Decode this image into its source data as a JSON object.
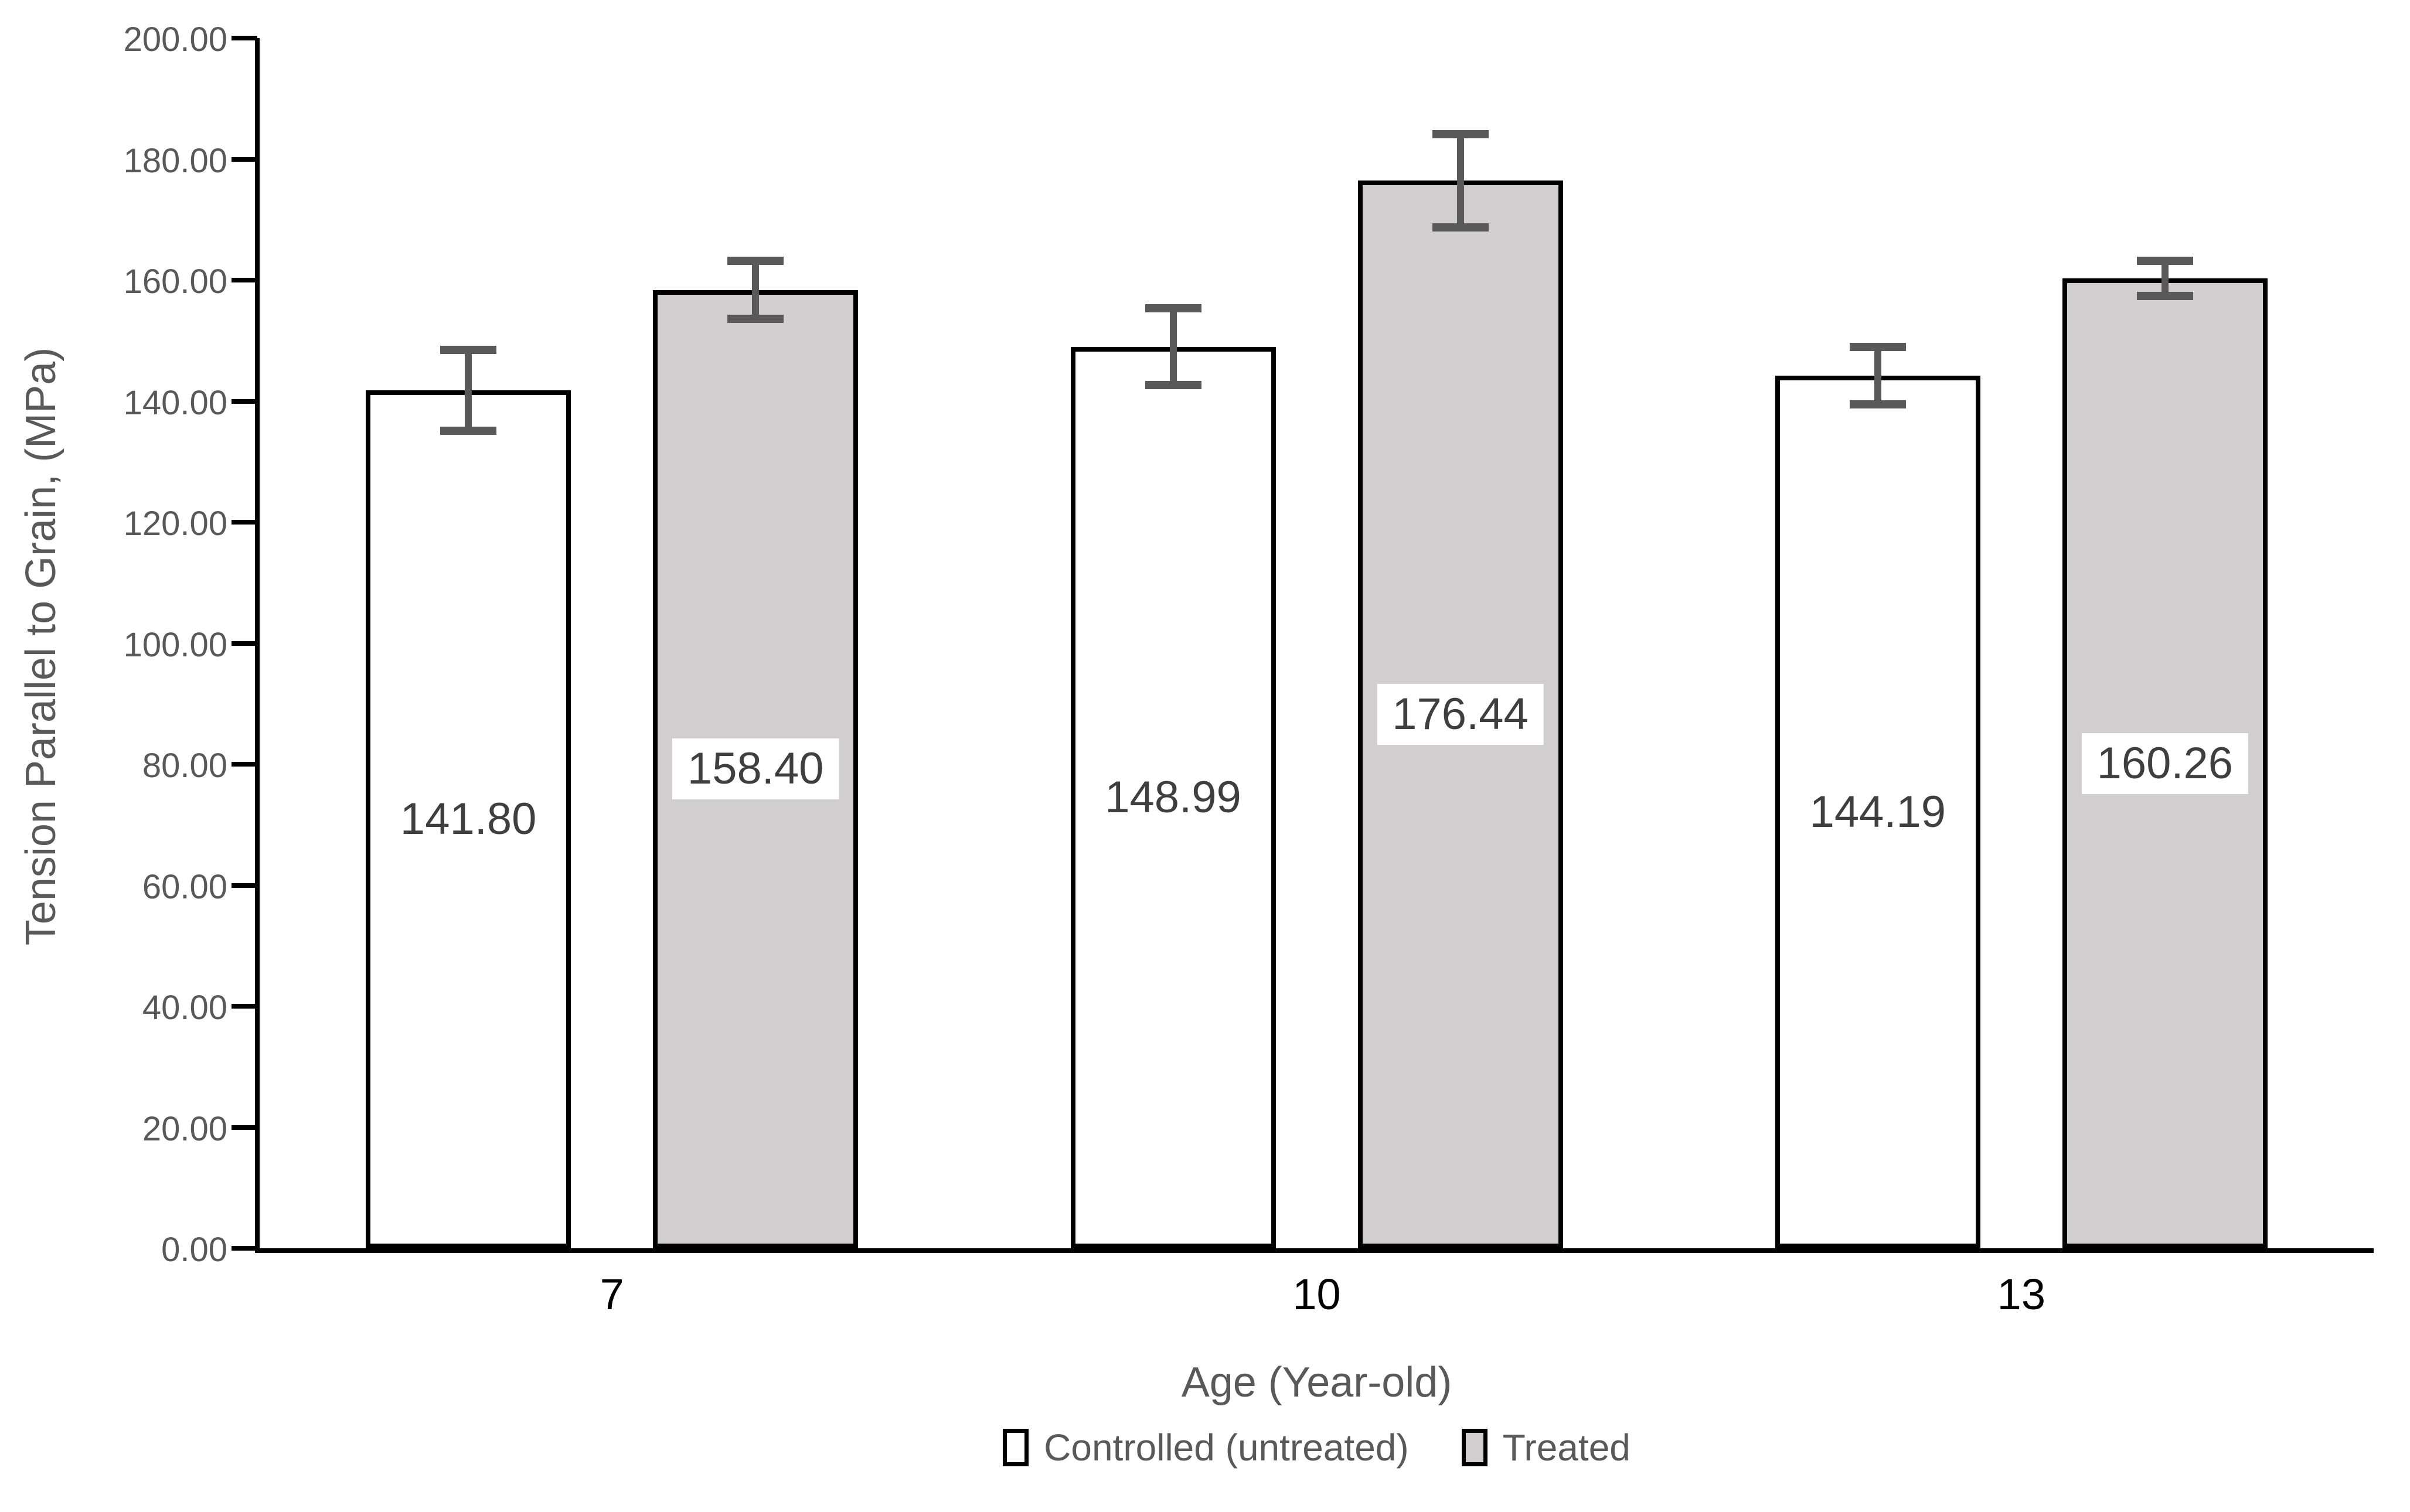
{
  "chart_data": {
    "type": "bar",
    "categories": [
      "7",
      "10",
      "13"
    ],
    "series": [
      {
        "name": "Controlled (untreated)",
        "fill": "#ffffff",
        "values": [
          141.8,
          148.99,
          144.19
        ],
        "value_labels": [
          "141.80",
          "148.99",
          "144.19"
        ],
        "error_bars": [
          7.4,
          7.0,
          5.4
        ]
      },
      {
        "name": "Treated",
        "fill": "#d0cece",
        "values": [
          158.4,
          176.44,
          160.26
        ],
        "value_labels": [
          "158.40",
          "176.44",
          "160.26"
        ],
        "error_bars": [
          5.5,
          8.4,
          3.6
        ]
      }
    ],
    "xlabel": "Age (Year-old)",
    "ylabel": "Tension Parallel to Grain, (MPa)",
    "ylim": [
      0,
      200
    ],
    "ytick_step": 20,
    "ytick_labels": [
      "0.00",
      "20.00",
      "40.00",
      "60.00",
      "80.00",
      "100.00",
      "120.00",
      "140.00",
      "160.00",
      "180.00",
      "200.00"
    ],
    "grid": false,
    "legend_position": "bottom"
  },
  "colors": {
    "axis_line": "#000000",
    "tick_text": "#595959",
    "axis_title_text": "#595959",
    "category_text": "#000000",
    "data_label_text": "#3f3f3f",
    "error_bar": "#595959",
    "bar_border": "#000000",
    "treated_fill": "#d0cece",
    "controlled_fill": "#ffffff",
    "background": "#ffffff"
  }
}
